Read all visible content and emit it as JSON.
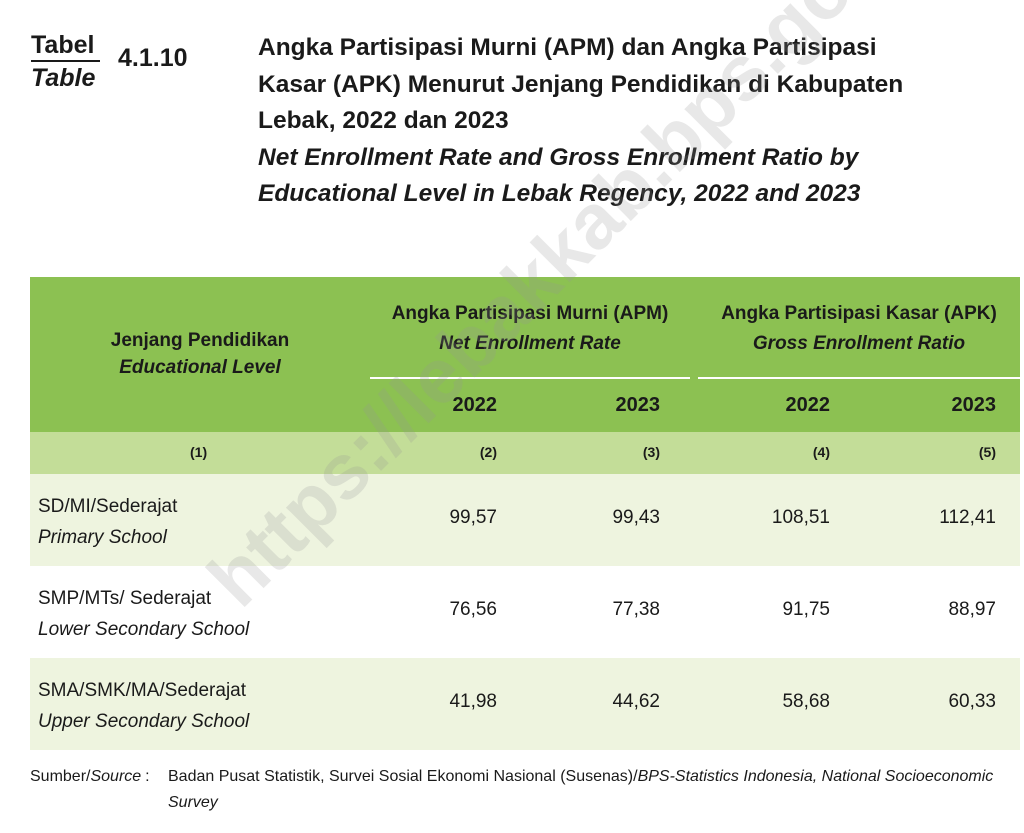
{
  "header": {
    "label_id": "Tabel",
    "label_en": "Table",
    "number": "4.1.10",
    "title_id_1": "Angka Partisipasi Murni (APM) dan Angka Partisipasi",
    "title_id_2": "Kasar (APK) Menurut Jenjang Pendidikan di Kabupaten",
    "title_id_3": "Lebak, 2022 dan 2023",
    "title_en_1": "Net Enrollment Rate and Gross Enrollment Ratio by",
    "title_en_2": "Educational Level in Lebak Regency, 2022 and 2023"
  },
  "table": {
    "col1_id": "Jenjang Pendidikan",
    "col1_en": "Educational Level",
    "apm_id": "Angka Partisipasi Murni (APM)",
    "apm_en": "Net Enrollment Rate",
    "apk_id": "Angka Partisipasi Kasar (APK)",
    "apk_en": "Gross Enrollment Ratio",
    "years": [
      "2022",
      "2023",
      "2022",
      "2023"
    ],
    "col_numbers": [
      "(1)",
      "(2)",
      "(3)",
      "(4)",
      "(5)"
    ],
    "rows": [
      {
        "name_id": "SD/MI/Sederajat",
        "name_en": "Primary School",
        "values": [
          "99,57",
          "99,43",
          "108,51",
          "112,41"
        ]
      },
      {
        "name_id": "SMP/MTs/ Sederajat",
        "name_en": "Lower Secondary School",
        "values": [
          "76,56",
          "77,38",
          "91,75",
          "88,97"
        ]
      },
      {
        "name_id": "SMA/SMK/MA/Sederajat",
        "name_en": "Upper Secondary School",
        "values": [
          "41,98",
          "44,62",
          "58,68",
          "60,33"
        ]
      }
    ]
  },
  "source": {
    "label_id": "Sumber/",
    "label_en": "Source",
    "label_colon": ":",
    "text_id": "Badan Pusat Statistik, Survei Sosial Ekonomi Nasional (Susenas)/",
    "text_en": "BPS-Statistics Indonesia, National Socioeconomic Survey"
  },
  "watermark": "https://lebakkab.bps.go.id"
}
